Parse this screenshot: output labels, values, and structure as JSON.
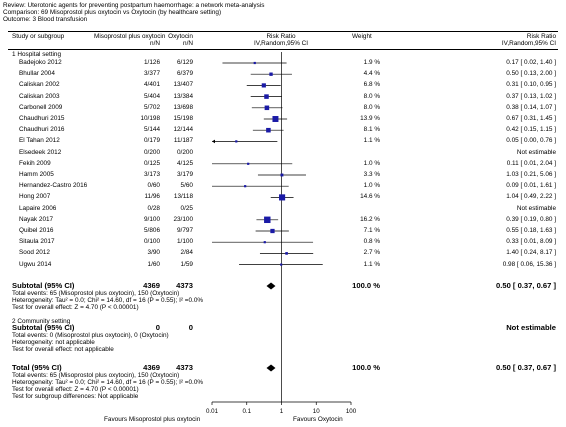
{
  "header": {
    "review": "Review:  Uterotonic agents for preventing postpartum haemorrhage: a network meta-analysis",
    "comparison": "Comparison:  69 Misoprostol plus oxytocin vs Oxytocin (by healthcare setting)",
    "outcome": "Outcome:  3 Blood transfusion"
  },
  "columns": {
    "study": "Study or subgroup",
    "exp": "Misoprostol plus oxytocin",
    "ctl": "Oxytocin",
    "exp_sub": "n/N",
    "ctl_sub": "n/N",
    "rr": "Risk Ratio",
    "rr_sub": "IV,Random,95% CI",
    "weight": "Weight",
    "rr2": "Risk Ratio",
    "rr2_sub": "IV,Random,95% CI"
  },
  "groups": {
    "g1_title": "1 Hospital setting",
    "g1_total_label": "Subtotal (95% CI)",
    "g1_total_exp": "4369",
    "g1_total_ctl": "4373",
    "g1_total_weight": "100.0 %",
    "g1_total_ci": "0.50 [ 0.37, 0.67 ]",
    "g1_events": "Total events: 65 (Misoprostol plus oxytocin), 150 (Oxytocin)",
    "g1_het": "Heterogeneity: Tau² = 0.0; Chi² = 14.60, df = 16 (P = 0.55); I² =0.0%",
    "g1_test": "Test for overall effect: Z = 4.70 (P < 0.00001)",
    "g2_title": "2 Community setting",
    "g2_total_label": "Subtotal (95% CI)",
    "g2_total_exp": "0",
    "g2_total_ctl": "0",
    "g2_total_ci": "Not estimable",
    "g2_events": "Total events: 0 (Misoprostol plus oxytocin), 0 (Oxytocin)",
    "g2_het": "Heterogeneity: not applicable",
    "g2_test": "Test for overall effect: not applicable",
    "total_label": "Total (95% CI)",
    "total_exp": "4369",
    "total_ctl": "4373",
    "total_weight": "100.0 %",
    "total_ci": "0.50 [ 0.37, 0.67 ]",
    "total_events": "Total events: 65 (Misoprostol plus oxytocin), 150 (Oxytocin)",
    "total_het": "Heterogeneity: Tau² = 0.0; Chi² = 14.60, df = 16 (P = 0.55); I² =0.0%",
    "total_test": "Test for overall effect: Z = 4.70 (P < 0.00001)",
    "subgroup_test": "Test for subgroup differences: Not applicable"
  },
  "axis": {
    "left_label": "Favours Misoprostol plus oxytocin",
    "right_label": "Favours Oxytocin"
  },
  "colors": {
    "box": "#1a1aa6",
    "line": "#000000"
  },
  "chart_data": {
    "type": "forest",
    "scale": "log",
    "xlim": [
      0.01,
      100
    ],
    "ticks": [
      "0.01",
      "0.1",
      "1",
      "10",
      "100"
    ],
    "studies": [
      {
        "name": "Badejoko 2012",
        "exp": "1/126",
        "ctl": "6/129",
        "weight": "1.9 %",
        "ci": "0.17 [ 0.02, 1.40 ]",
        "rr": 0.17,
        "lo": 0.02,
        "hi": 1.4,
        "w": 1.9
      },
      {
        "name": "Bhullar 2004",
        "exp": "3/377",
        "ctl": "6/379",
        "weight": "4.4 %",
        "ci": "0.50 [ 0.13, 2.00 ]",
        "rr": 0.5,
        "lo": 0.13,
        "hi": 2.0,
        "w": 4.4
      },
      {
        "name": "Caliskan 2002",
        "exp": "4/401",
        "ctl": "13/407",
        "weight": "6.8 %",
        "ci": "0.31 [ 0.10, 0.95 ]",
        "rr": 0.31,
        "lo": 0.1,
        "hi": 0.95,
        "w": 6.8
      },
      {
        "name": "Caliskan 2003",
        "exp": "5/404",
        "ctl": "13/384",
        "weight": "8.0 %",
        "ci": "0.37 [ 0.13, 1.02 ]",
        "rr": 0.37,
        "lo": 0.13,
        "hi": 1.02,
        "w": 8.0
      },
      {
        "name": "Carbonell 2009",
        "exp": "5/702",
        "ctl": "13/698",
        "weight": "8.0 %",
        "ci": "0.38 [ 0.14, 1.07 ]",
        "rr": 0.38,
        "lo": 0.14,
        "hi": 1.07,
        "w": 8.0
      },
      {
        "name": "Chaudhuri 2015",
        "exp": "10/198",
        "ctl": "15/198",
        "weight": "13.9 %",
        "ci": "0.67 [ 0.31, 1.45 ]",
        "rr": 0.67,
        "lo": 0.31,
        "hi": 1.45,
        "w": 13.9
      },
      {
        "name": "Chaudhuri 2016",
        "exp": "5/144",
        "ctl": "12/144",
        "weight": "8.1 %",
        "ci": "0.42 [ 0.15, 1.15 ]",
        "rr": 0.42,
        "lo": 0.15,
        "hi": 1.15,
        "w": 8.1
      },
      {
        "name": "El Tahan 2012",
        "exp": "0/179",
        "ctl": "11/187",
        "weight": "1.1 %",
        "ci": "0.05 [ 0.00, 0.76 ]",
        "rr": 0.05,
        "lo": 0.003,
        "hi": 0.76,
        "w": 1.1
      },
      {
        "name": "Elsedeek 2012",
        "exp": "0/200",
        "ctl": "0/200",
        "weight": "",
        "ci": "Not estimable",
        "rr": null,
        "lo": null,
        "hi": null,
        "w": 0
      },
      {
        "name": "Fekih 2009",
        "exp": "0/125",
        "ctl": "4/125",
        "weight": "1.0 %",
        "ci": "0.11 [ 0.01, 2.04 ]",
        "rr": 0.11,
        "lo": 0.01,
        "hi": 2.04,
        "w": 1.0
      },
      {
        "name": "Hamm 2005",
        "exp": "3/173",
        "ctl": "3/179",
        "weight": "3.3 %",
        "ci": "1.03 [ 0.21, 5.06 ]",
        "rr": 1.03,
        "lo": 0.21,
        "hi": 5.06,
        "w": 3.3
      },
      {
        "name": "Hernandez-Castro 2016",
        "exp": "0/60",
        "ctl": "5/60",
        "weight": "1.0 %",
        "ci": "0.09 [ 0.01, 1.61 ]",
        "rr": 0.09,
        "lo": 0.01,
        "hi": 1.61,
        "w": 1.0
      },
      {
        "name": "Hong 2007",
        "exp": "11/96",
        "ctl": "13/118",
        "weight": "14.6 %",
        "ci": "1.04 [ 0.49, 2.22 ]",
        "rr": 1.04,
        "lo": 0.49,
        "hi": 2.22,
        "w": 14.6
      },
      {
        "name": "Lapaire 2006",
        "exp": "0/28",
        "ctl": "0/25",
        "weight": "",
        "ci": "Not estimable",
        "rr": null,
        "lo": null,
        "hi": null,
        "w": 0
      },
      {
        "name": "Nayak 2017",
        "exp": "9/100",
        "ctl": "23/100",
        "weight": "16.2 %",
        "ci": "0.39 [ 0.19, 0.80 ]",
        "rr": 0.39,
        "lo": 0.19,
        "hi": 0.8,
        "w": 16.2
      },
      {
        "name": "Quibel 2016",
        "exp": "5/806",
        "ctl": "9/797",
        "weight": "7.1 %",
        "ci": "0.55 [ 0.18, 1.63 ]",
        "rr": 0.55,
        "lo": 0.18,
        "hi": 1.63,
        "w": 7.1
      },
      {
        "name": "Sitaula 2017",
        "exp": "0/100",
        "ctl": "1/100",
        "weight": "0.8 %",
        "ci": "0.33 [ 0.01, 8.09 ]",
        "rr": 0.33,
        "lo": 0.01,
        "hi": 8.09,
        "w": 0.8
      },
      {
        "name": "Sood 2012",
        "exp": "3/90",
        "ctl": "2/84",
        "weight": "2.7 %",
        "ci": "1.40 [ 0.24, 8.17 ]",
        "rr": 1.4,
        "lo": 0.24,
        "hi": 8.17,
        "w": 2.7
      },
      {
        "name": "Ugwu 2014",
        "exp": "1/60",
        "ctl": "1/59",
        "weight": "1.1 %",
        "ci": "0.98 [ 0.06, 15.36 ]",
        "rr": 0.98,
        "lo": 0.06,
        "hi": 15.36,
        "w": 1.1
      }
    ],
    "subtotal": {
      "rr": 0.5,
      "lo": 0.37,
      "hi": 0.67
    },
    "total": {
      "rr": 0.5,
      "lo": 0.37,
      "hi": 0.67
    }
  }
}
